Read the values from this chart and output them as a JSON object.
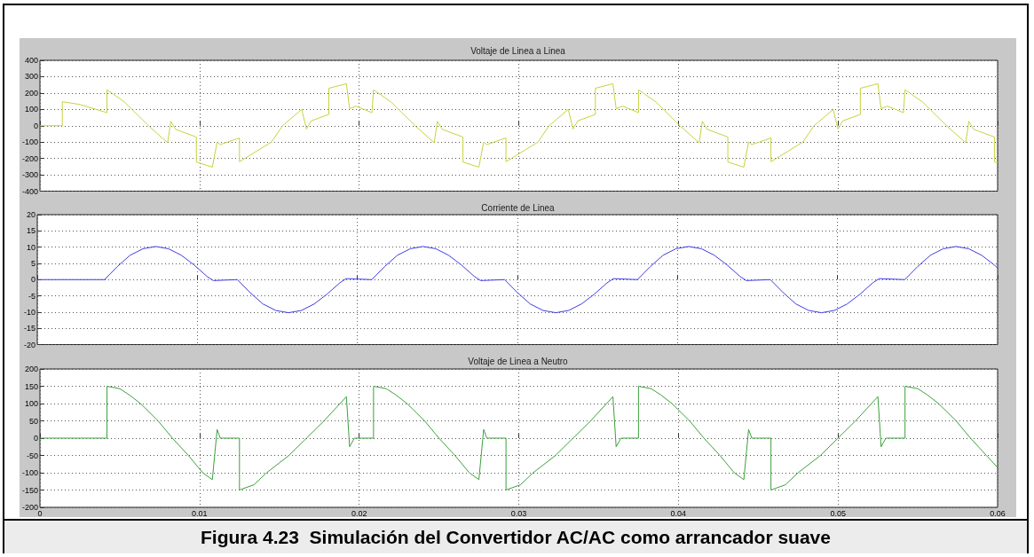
{
  "chart_data": [
    {
      "type": "line",
      "title": "Voltaje de Linea a Linea",
      "marker": "none",
      "grid": true,
      "tick_labels": "y",
      "xlim": [
        0,
        0.06
      ],
      "xticks": [
        0,
        0.01,
        0.02,
        0.03,
        0.04,
        0.05,
        0.06
      ],
      "ylim": [
        -400,
        400
      ],
      "yticks": [
        -400,
        -300,
        -200,
        -100,
        0,
        100,
        200,
        300,
        400
      ],
      "series": [
        {
          "color": "#c8d23c",
          "x": [
            0,
            0.0014,
            0.0014,
            0.0025,
            0.0042,
            0.0042,
            0.0053,
            0.0068,
            0.008,
            0.0082,
            0.0085,
            0.0098,
            0.0098,
            0.0108,
            0.0111,
            0.0113,
            0.0125,
            0.0125,
            0.0145,
            0.0152,
            0.0164,
            0.0167,
            0.017,
            0.0181,
            0.0181,
            0.0192,
            0.0194,
            0.0198,
            0.0208,
            0.0209,
            0.022,
            0.0235,
            0.0247,
            0.0249,
            0.0252,
            0.0265,
            0.0265,
            0.0275,
            0.0278,
            0.028,
            0.0292,
            0.0292,
            0.0312,
            0.0319,
            0.0331,
            0.0334,
            0.0337,
            0.0348,
            0.0348,
            0.0359,
            0.0361,
            0.0365,
            0.0375,
            0.0375,
            0.0386,
            0.0401,
            0.0413,
            0.0415,
            0.0418,
            0.0431,
            0.0431,
            0.0441,
            0.0444,
            0.0446,
            0.0458,
            0.0458,
            0.0478,
            0.0485,
            0.0497,
            0.05,
            0.0503,
            0.0514,
            0.0514,
            0.0525,
            0.0527,
            0.0531,
            0.0541,
            0.0542,
            0.0553,
            0.0568,
            0.058,
            0.0582,
            0.0585,
            0.0598,
            0.0598,
            0.06
          ],
          "values": [
            0,
            0,
            147,
            130,
            80,
            220,
            145,
            0,
            -104,
            27,
            -22,
            -69,
            -222,
            -253,
            -100,
            -115,
            -75,
            -220,
            -100,
            0,
            100,
            -20,
            30,
            69,
            229,
            257,
            104,
            120,
            80,
            220,
            145,
            0,
            -104,
            27,
            -22,
            -69,
            -222,
            -253,
            -100,
            -115,
            -75,
            -220,
            -100,
            0,
            100,
            -20,
            30,
            69,
            229,
            257,
            104,
            120,
            80,
            220,
            145,
            0,
            -104,
            27,
            -22,
            -69,
            -222,
            -253,
            -100,
            -115,
            -75,
            -220,
            -100,
            0,
            100,
            -20,
            30,
            69,
            229,
            257,
            104,
            120,
            80,
            220,
            145,
            0,
            -104,
            27,
            -22,
            -69,
            -222,
            -228
          ]
        }
      ]
    },
    {
      "type": "line",
      "title": "Corriente de Linea",
      "marker": "none",
      "grid": true,
      "tick_labels": "y",
      "xlim": [
        0,
        0.06
      ],
      "xticks": [
        0,
        0.01,
        0.02,
        0.03,
        0.04,
        0.05,
        0.06
      ],
      "ylim": [
        -20,
        20
      ],
      "yticks": [
        -20,
        -15,
        -10,
        -5,
        0,
        5,
        10,
        15,
        20
      ],
      "series": [
        {
          "color": "#3c3ce6",
          "x": [
            0,
            0.0042,
            0.005,
            0.0058,
            0.0066,
            0.0074,
            0.0082,
            0.009,
            0.0098,
            0.0106,
            0.011,
            0.0125,
            0.0133,
            0.0141,
            0.0149,
            0.0157,
            0.0165,
            0.0173,
            0.0181,
            0.0189,
            0.0193,
            0.0209,
            0.0217,
            0.0225,
            0.0233,
            0.0241,
            0.0249,
            0.0257,
            0.0265,
            0.0273,
            0.0277,
            0.0292,
            0.03,
            0.0308,
            0.0316,
            0.0324,
            0.0332,
            0.034,
            0.0348,
            0.0356,
            0.036,
            0.0375,
            0.0383,
            0.0391,
            0.0399,
            0.0407,
            0.0415,
            0.0423,
            0.0431,
            0.0439,
            0.0443,
            0.0458,
            0.0466,
            0.0474,
            0.0482,
            0.049,
            0.0498,
            0.0506,
            0.0514,
            0.0522,
            0.0526,
            0.0542,
            0.055,
            0.0558,
            0.0566,
            0.0574,
            0.0582,
            0.059,
            0.0598,
            0.06
          ],
          "values": [
            0,
            0,
            4,
            7.5,
            9.5,
            10.2,
            9.5,
            7.5,
            4.5,
            1,
            -0.3,
            0,
            -4,
            -7.5,
            -9.5,
            -10.2,
            -9.5,
            -7.5,
            -4.5,
            -1,
            0.3,
            0,
            4,
            7.5,
            9.5,
            10.2,
            9.5,
            7.5,
            4.5,
            1,
            -0.3,
            0,
            -4,
            -7.5,
            -9.5,
            -10.2,
            -9.5,
            -7.5,
            -4.5,
            -1,
            0.3,
            0,
            4,
            7.5,
            9.5,
            10.2,
            9.5,
            7.5,
            4.5,
            1,
            -0.3,
            0,
            -4,
            -7.5,
            -9.5,
            -10.2,
            -9.5,
            -7.5,
            -4.5,
            -1,
            0.3,
            0,
            4,
            7.5,
            9.5,
            10.2,
            9.5,
            7.5,
            4.5,
            3.5
          ]
        }
      ]
    },
    {
      "type": "line",
      "title": "Voltaje de Linea a Neutro",
      "marker": "none",
      "grid": true,
      "xlim": [
        0,
        0.06
      ],
      "xticks": [
        0,
        0.01,
        0.02,
        0.03,
        0.04,
        0.05,
        0.06
      ],
      "ylim": [
        -200,
        200
      ],
      "yticks": [
        -200,
        -150,
        -100,
        -50,
        0,
        50,
        100,
        150,
        200
      ],
      "annotations": [
        "Figura 4.23  Simulación del Convertidor AC/AC como arrancador suave"
      ],
      "series": [
        {
          "color": "#3ca03c",
          "x": [
            0,
            0.0042,
            0.0042,
            0.005,
            0.0056,
            0.0063,
            0.0074,
            0.0083,
            0.0093,
            0.0102,
            0.0108,
            0.0111,
            0.0113,
            0.0125,
            0.0125,
            0.0126,
            0.0134,
            0.0142,
            0.0156,
            0.0167,
            0.0178,
            0.0188,
            0.0192,
            0.0194,
            0.0197,
            0.0209,
            0.0209,
            0.0217,
            0.0223,
            0.023,
            0.0241,
            0.025,
            0.026,
            0.0269,
            0.0275,
            0.0278,
            0.028,
            0.0292,
            0.0292,
            0.0293,
            0.0301,
            0.0309,
            0.0323,
            0.0334,
            0.0345,
            0.0355,
            0.0359,
            0.0361,
            0.0364,
            0.0375,
            0.0375,
            0.0383,
            0.0389,
            0.0396,
            0.0407,
            0.0416,
            0.0426,
            0.0435,
            0.0441,
            0.0444,
            0.0446,
            0.0458,
            0.0458,
            0.0459,
            0.0467,
            0.0475,
            0.0489,
            0.05,
            0.0511,
            0.0521,
            0.0525,
            0.0527,
            0.053,
            0.0542,
            0.0542,
            0.055,
            0.0556,
            0.0563,
            0.0574,
            0.0583,
            0.0593,
            0.06
          ],
          "values": [
            0,
            0,
            150,
            143,
            125,
            100,
            50,
            0,
            -50,
            -100,
            -120,
            25,
            0,
            0,
            -150,
            -148,
            -135,
            -100,
            -50,
            0,
            50,
            100,
            120,
            -25,
            0,
            0,
            150,
            143,
            125,
            100,
            50,
            0,
            -50,
            -100,
            -120,
            25,
            0,
            0,
            -150,
            -148,
            -135,
            -100,
            -50,
            0,
            50,
            100,
            120,
            -25,
            0,
            0,
            150,
            143,
            125,
            100,
            50,
            0,
            -50,
            -100,
            -120,
            25,
            0,
            0,
            -150,
            -148,
            -135,
            -100,
            -50,
            0,
            50,
            100,
            120,
            -25,
            0,
            0,
            150,
            143,
            125,
            100,
            50,
            0,
            -50,
            -85
          ]
        }
      ]
    }
  ]
}
